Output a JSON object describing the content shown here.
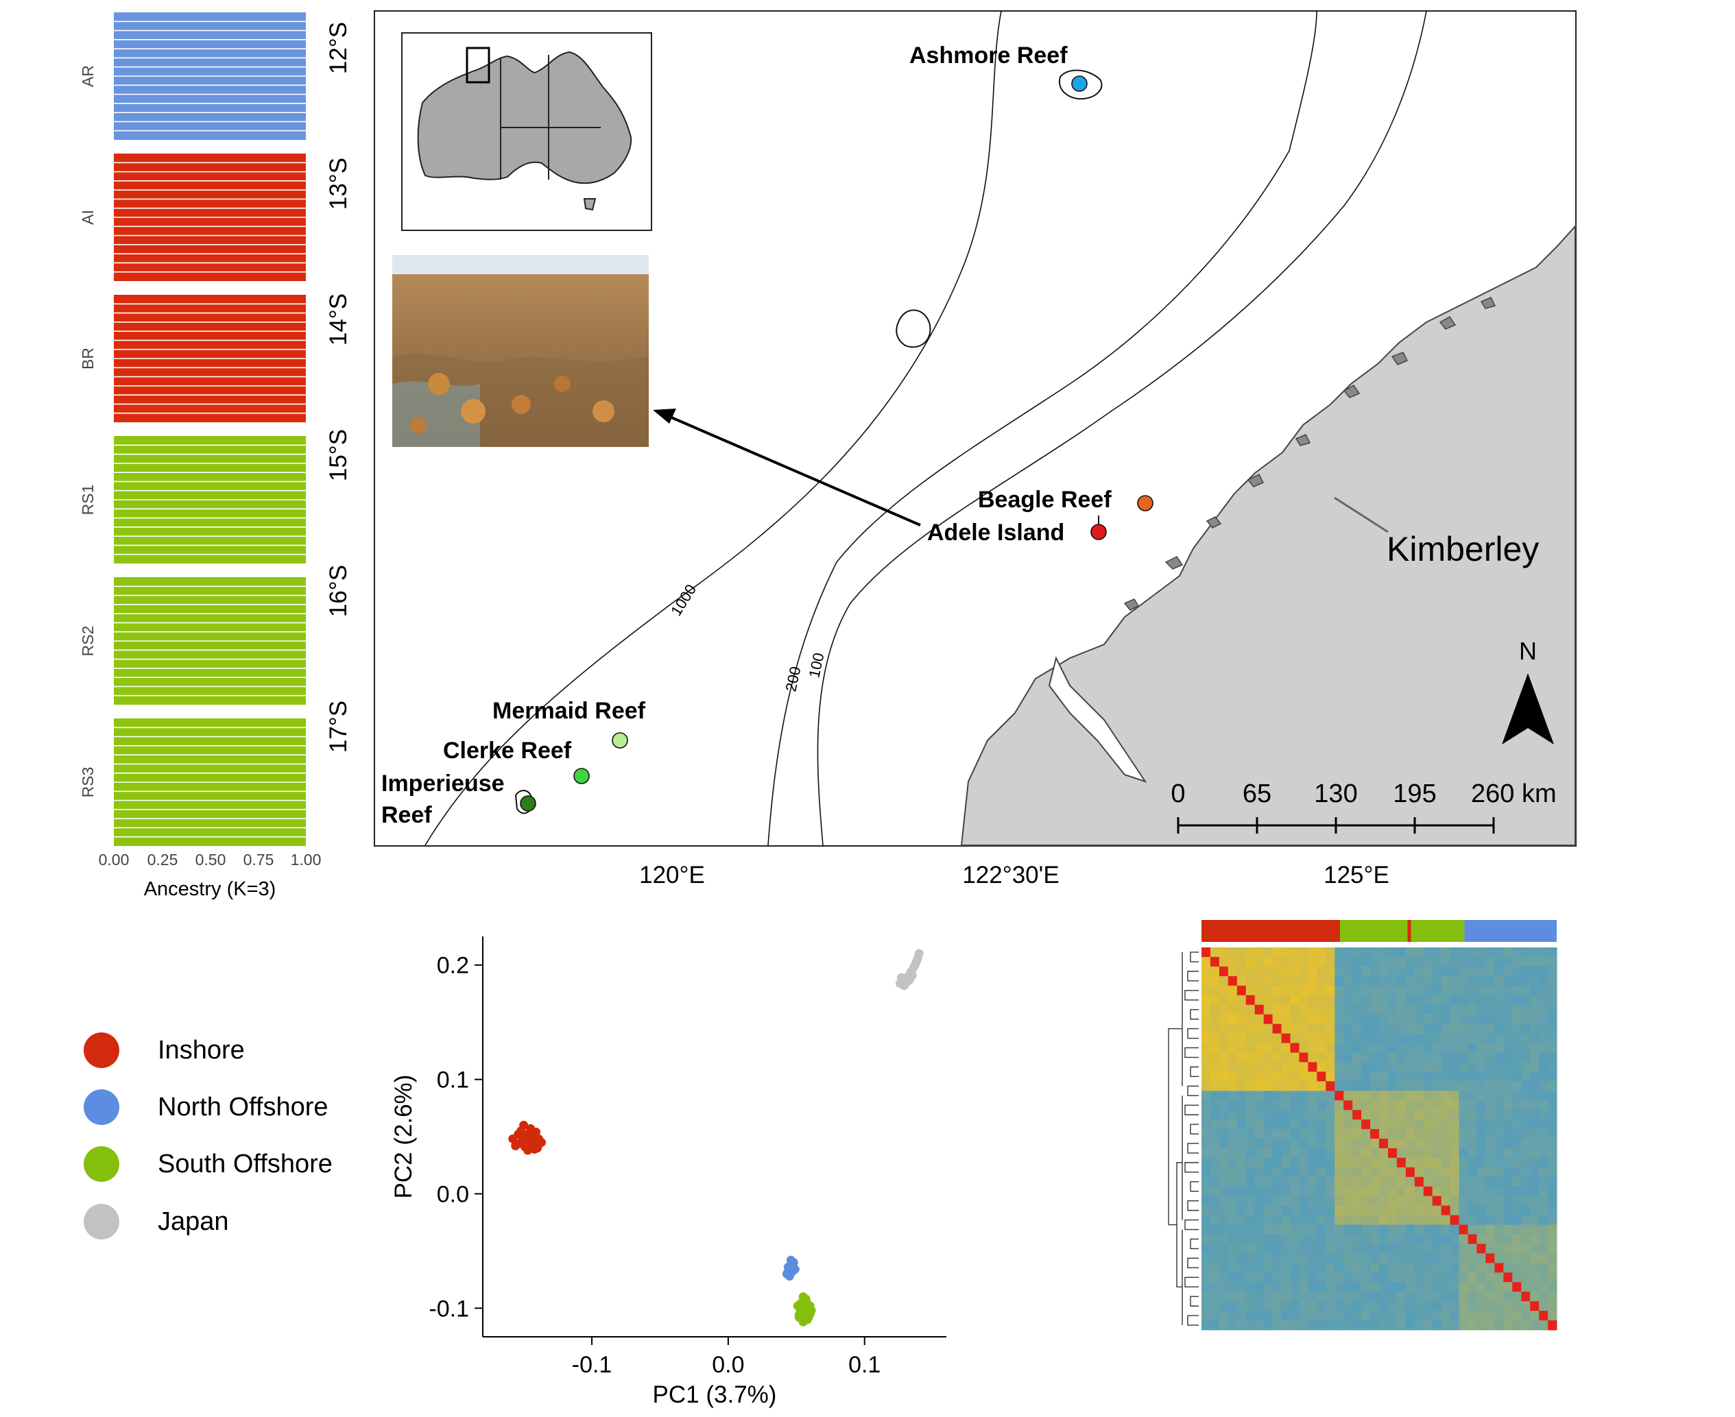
{
  "structure_panel": {
    "populations": [
      {
        "label": "AR",
        "color": "#6a94de"
      },
      {
        "label": "AI",
        "color": "#d92c0f"
      },
      {
        "label": "BR",
        "color": "#d92c0f"
      },
      {
        "label": "RS1",
        "color": "#8ec40f"
      },
      {
        "label": "RS2",
        "color": "#8ec40f"
      },
      {
        "label": "RS3",
        "color": "#8ec40f"
      }
    ],
    "x_ticks": [
      "0.00",
      "0.25",
      "0.50",
      "0.75",
      "1.00"
    ],
    "x_label": "Ancestry (K=3)"
  },
  "map": {
    "lat_labels": [
      "12°S",
      "13°S",
      "14°S",
      "15°S",
      "16°S",
      "17°S"
    ],
    "lon_labels": [
      "120°E",
      "122°30'E",
      "125°E"
    ],
    "sites": [
      {
        "name": "Ashmore Reef",
        "color": "#1aa6e6"
      },
      {
        "name": "Beagle Reef",
        "color": "#e8661c"
      },
      {
        "name": "Adele Island",
        "color": "#e01b1b"
      },
      {
        "name": "Mermaid Reef",
        "color": "#b9ef8e"
      },
      {
        "name": "Clerke Reef",
        "color": "#3fd63f"
      },
      {
        "name": "Imperieuse Reef",
        "color": "#2e7d1c"
      }
    ],
    "region_label": "Kimberley",
    "contours": [
      "1000",
      "200",
      "100"
    ],
    "north_label": "N",
    "scale_ticks": [
      "0",
      "65",
      "130",
      "195",
      "260 km"
    ]
  },
  "legend": [
    {
      "label": "Inshore",
      "color": "#d22a0c"
    },
    {
      "label": "North Offshore",
      "color": "#5c8de0"
    },
    {
      "label": "South Offshore",
      "color": "#84bf0e"
    },
    {
      "label": "Japan",
      "color": "#c2c2c2"
    }
  ],
  "chart_data": [
    {
      "type": "scatter",
      "xlabel": "PC1 (3.7%)",
      "ylabel": "PC2 (2.6%)",
      "xlim": [
        -0.18,
        0.16
      ],
      "ylim": [
        -0.125,
        0.225
      ],
      "x_ticks": [
        -0.1,
        0.0,
        0.1
      ],
      "y_ticks": [
        0.2,
        0.1,
        0.0,
        -0.1
      ],
      "x_tick_labels": [
        "-0.1",
        "0.0",
        "0.1"
      ],
      "y_tick_labels": [
        "0.2",
        "0.1",
        "0.0",
        "-0.1"
      ],
      "series": [
        {
          "name": "Inshore",
          "color": "#d22a0c",
          "x": [
            -0.158,
            -0.154,
            -0.151,
            -0.148,
            -0.145,
            -0.142,
            -0.139,
            -0.156,
            -0.152,
            -0.149,
            -0.146,
            -0.143,
            -0.14,
            -0.137,
            -0.15,
            -0.147,
            -0.144,
            -0.141,
            -0.153,
            -0.145,
            -0.148,
            -0.142,
            -0.151,
            -0.139
          ],
          "y": [
            0.048,
            0.052,
            0.046,
            0.05,
            0.044,
            0.049,
            0.043,
            0.042,
            0.055,
            0.041,
            0.053,
            0.047,
            0.04,
            0.045,
            0.06,
            0.038,
            0.051,
            0.054,
            0.044,
            0.057,
            0.049,
            0.039,
            0.05,
            0.048
          ]
        },
        {
          "name": "North Offshore",
          "color": "#5c8de0",
          "x": [
            0.043,
            0.045,
            0.046,
            0.047,
            0.044,
            0.048,
            0.045,
            0.046,
            0.049,
            0.044,
            0.047
          ],
          "y": [
            -0.07,
            -0.066,
            -0.062,
            -0.068,
            -0.064,
            -0.06,
            -0.072,
            -0.058,
            -0.066,
            -0.068,
            -0.063
          ]
        },
        {
          "name": "South Offshore",
          "color": "#84bf0e",
          "x": [
            0.051,
            0.053,
            0.055,
            0.057,
            0.059,
            0.054,
            0.056,
            0.058,
            0.06,
            0.052,
            0.055,
            0.057,
            0.061,
            0.053,
            0.056,
            0.059,
            0.054,
            0.058,
            0.055,
            0.057,
            0.06,
            0.052
          ],
          "y": [
            -0.098,
            -0.102,
            -0.096,
            -0.104,
            -0.1,
            -0.108,
            -0.094,
            -0.11,
            -0.098,
            -0.106,
            -0.112,
            -0.092,
            -0.102,
            -0.096,
            -0.104,
            -0.108,
            -0.1,
            -0.096,
            -0.09,
            -0.099,
            -0.105,
            -0.108
          ]
        },
        {
          "name": "Japan",
          "color": "#c2c2c2",
          "x": [
            0.126,
            0.128,
            0.13,
            0.132,
            0.134,
            0.136,
            0.138,
            0.14,
            0.129,
            0.133,
            0.137,
            0.127,
            0.135,
            0.131,
            0.139
          ],
          "y": [
            0.184,
            0.186,
            0.188,
            0.19,
            0.194,
            0.198,
            0.203,
            0.21,
            0.182,
            0.187,
            0.2,
            0.189,
            0.191,
            0.185,
            0.206
          ]
        }
      ]
    },
    {
      "type": "heatmap",
      "n": 40,
      "group_bar": [
        {
          "color": "#d22a0c",
          "fraction": 0.39
        },
        {
          "color": "#84bf0e",
          "fraction": 0.19
        },
        {
          "color": "#d22a0c",
          "fraction": 0.01
        },
        {
          "color": "#84bf0e",
          "fraction": 0.15
        },
        {
          "color": "#5c8de0",
          "fraction": 0.26
        }
      ],
      "blocks": [
        0.38,
        0.34,
        0.28
      ],
      "colors": {
        "high": "#e8c22e",
        "low": "#4f9cc0",
        "diagonal": "#e4231a"
      }
    }
  ]
}
